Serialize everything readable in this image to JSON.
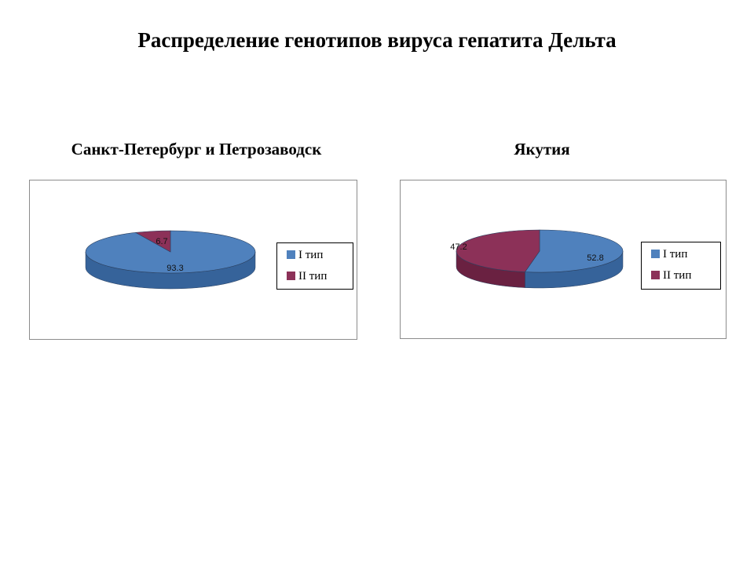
{
  "title": "Распределение генотипов вируса гепатита Дельта",
  "colors": {
    "type1_top": "#4f81bd",
    "type1_side": "#36639a",
    "type2_top": "#8c3158",
    "type2_side": "#6a2141"
  },
  "chart_data": [
    {
      "type": "pie",
      "title": "Санкт-Петербург и Петрозаводск",
      "categories": [
        "I тип",
        "II тип"
      ],
      "values": [
        93.3,
        6.7
      ],
      "data_labels": [
        "93.3",
        "6.7"
      ],
      "legend_position": "right"
    },
    {
      "type": "pie",
      "title": "Якутия",
      "categories": [
        "I тип",
        "II тип"
      ],
      "values": [
        52.8,
        47.2
      ],
      "data_labels": [
        "52.8",
        "47.2"
      ],
      "legend_position": "right"
    }
  ]
}
